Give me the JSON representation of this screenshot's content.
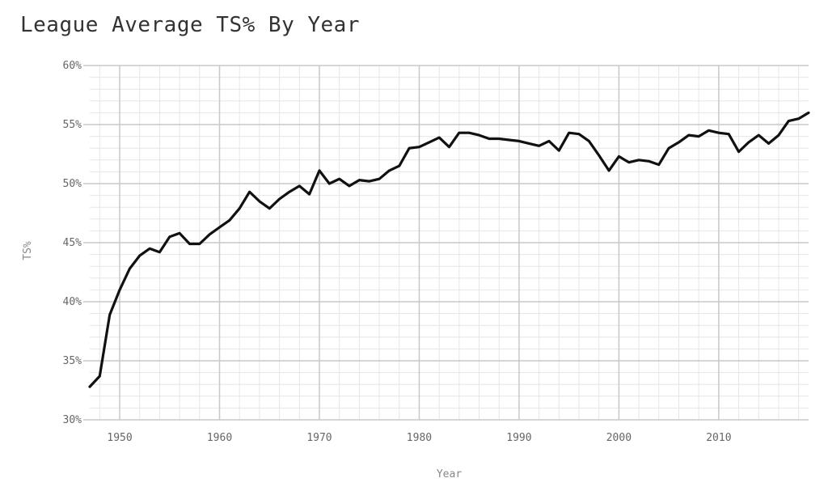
{
  "chart_data": {
    "type": "line",
    "title": "League Average TS% By Year",
    "xlabel": "Year",
    "ylabel": "TS%",
    "xlim": [
      1947,
      2019
    ],
    "ylim": [
      30,
      60
    ],
    "x_ticks": [
      "1950",
      "1960",
      "1970",
      "1980",
      "1990",
      "2000",
      "2010"
    ],
    "y_ticks": [
      "30%",
      "35%",
      "40%",
      "45%",
      "50%",
      "55%",
      "60%"
    ],
    "grid": true,
    "line_color": "#111111",
    "series": [
      {
        "x": [
          1947,
          1948,
          1949,
          1950,
          1951,
          1952,
          1953,
          1954,
          1955,
          1956,
          1957,
          1958,
          1959,
          1960,
          1961,
          1962,
          1963,
          1964,
          1965,
          1966,
          1967,
          1968,
          1969,
          1970,
          1971,
          1972,
          1973,
          1974,
          1975,
          1976,
          1977,
          1978,
          1979,
          1980,
          1981,
          1982,
          1983,
          1984,
          1985,
          1986,
          1987,
          1988,
          1989,
          1990,
          1991,
          1992,
          1993,
          1994,
          1995,
          1996,
          1997,
          1998,
          1999,
          2000,
          2001,
          2002,
          2003,
          2004,
          2005,
          2006,
          2007,
          2008,
          2009,
          2010,
          2011,
          2012,
          2013,
          2014,
          2015,
          2016,
          2017,
          2018,
          2019
        ],
        "values": [
          32.8,
          33.7,
          38.9,
          41.0,
          42.8,
          43.9,
          44.5,
          44.2,
          45.5,
          45.8,
          44.9,
          44.9,
          45.7,
          46.3,
          46.9,
          47.9,
          49.3,
          48.5,
          47.9,
          48.7,
          49.3,
          49.8,
          49.1,
          51.1,
          50.0,
          50.4,
          49.8,
          50.3,
          50.2,
          50.4,
          51.1,
          51.5,
          53.0,
          53.1,
          53.5,
          53.9,
          53.1,
          54.3,
          54.3,
          54.1,
          53.8,
          53.8,
          53.7,
          53.6,
          53.4,
          53.2,
          53.6,
          52.8,
          54.3,
          54.2,
          53.6,
          52.4,
          51.1,
          52.3,
          51.8,
          52.0,
          51.9,
          51.6,
          53.0,
          53.5,
          54.1,
          54.0,
          54.5,
          54.3,
          54.2,
          52.7,
          53.5,
          54.1,
          53.4,
          54.1,
          55.3,
          55.5,
          56.0
        ]
      }
    ]
  }
}
